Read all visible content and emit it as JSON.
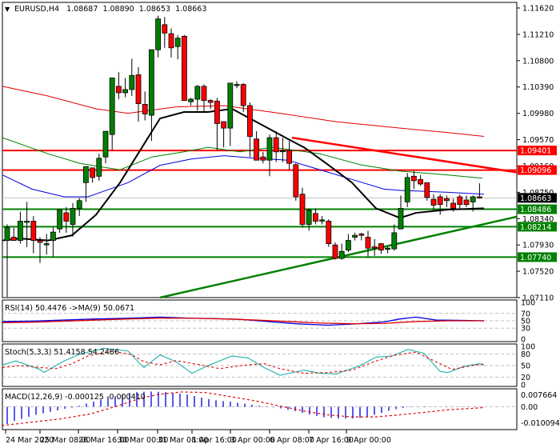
{
  "header": {
    "symbol_label": "EURUSD,H4",
    "open": "1.08687",
    "high": "1.08890",
    "low": "1.08653",
    "close": "1.08663"
  },
  "price_axis": {
    "ticks": [
      "1.11620",
      "1.11210",
      "1.10800",
      "1.10390",
      "1.09980",
      "1.09570",
      "1.09160",
      "1.08750",
      "1.08340",
      "1.07930",
      "1.07520",
      "1.07110"
    ]
  },
  "levels": {
    "resistance_1": {
      "value": "1.09401",
      "color": "#ff0000"
    },
    "resistance_2": {
      "value": "1.09096",
      "color": "#ff0000"
    },
    "current": {
      "value": "1.08663",
      "color": "#000000"
    },
    "support_1": {
      "value": "1.08486",
      "color": "#008000"
    },
    "support_2": {
      "value": "1.08214",
      "color": "#008000"
    },
    "support_3": {
      "value": "1.07740",
      "color": "#008000"
    }
  },
  "indicators": {
    "rsi": {
      "label": "RSI(14) 50.4476  ->MA(9) 50.0671",
      "levels": [
        "100",
        "70",
        "50",
        "30",
        "0"
      ]
    },
    "stoch": {
      "label": "Stoch(5,3,3) 51.4158 54.2486",
      "levels": [
        "100",
        "80",
        "50",
        "20",
        "0"
      ]
    },
    "macd": {
      "label": "MACD(12,26,9) -0.000125 -0.000410",
      "levels": [
        "0.007664",
        "0.00",
        "-0.010094"
      ]
    }
  },
  "time_axis": {
    "ticks": [
      "24 Mar 2020",
      "25 Mar 08:00",
      "26 Mar 16:00",
      "30 Mar 00:00",
      "31 Mar 08:00",
      "1 Apr 16:00",
      "3 Apr 00:00",
      "6 Apr 08:00",
      "7 Apr 16:00",
      "9 Apr 00:00"
    ]
  },
  "chart_data": {
    "type": "candlestick",
    "title": "EURUSD,H4",
    "ohlc_header": {
      "open": 1.08687,
      "high": 1.0889,
      "low": 1.08653,
      "close": 1.08663
    },
    "ylim": [
      1.0711,
      1.1162
    ],
    "y_ticks": [
      1.1162,
      1.1121,
      1.108,
      1.1039,
      1.0998,
      1.0957,
      1.0916,
      1.0875,
      1.0834,
      1.0793,
      1.0752,
      1.0711
    ],
    "x_ticks": [
      "24 Mar 2020",
      "25 Mar 08:00",
      "26 Mar 16:00",
      "30 Mar 00:00",
      "31 Mar 08:00",
      "1 Apr 16:00",
      "3 Apr 00:00",
      "6 Apr 08:00",
      "7 Apr 16:00",
      "9 Apr 00:00"
    ],
    "horizontal_levels": [
      {
        "value": 1.09401,
        "color": "red",
        "role": "resistance"
      },
      {
        "value": 1.09096,
        "color": "red",
        "role": "resistance"
      },
      {
        "value": 1.08486,
        "color": "green",
        "role": "support"
      },
      {
        "value": 1.08214,
        "color": "green",
        "role": "support"
      },
      {
        "value": 1.0774,
        "color": "green",
        "role": "support"
      }
    ],
    "trendlines": [
      {
        "color": "red",
        "from": {
          "x": "1 Apr 16:00",
          "y": 1.096
        },
        "to": {
          "x": "9 Apr 12:00",
          "y": 1.0908
        },
        "role": "descending resistance"
      },
      {
        "color": "green",
        "from": {
          "x": "26 Mar 16:00",
          "y": 1.0711
        },
        "to": {
          "x": "9 Apr 12:00",
          "y": 1.0838
        },
        "role": "ascending support"
      }
    ],
    "moving_averages": [
      "black (short)",
      "blue",
      "green",
      "red (long)"
    ],
    "candles_approx": [
      {
        "o": 1.08,
        "h": 1.0825,
        "l": 1.0712,
        "c": 1.082
      },
      {
        "o": 1.0805,
        "h": 1.082,
        "l": 1.08,
        "c": 1.08
      },
      {
        "o": 1.08,
        "h": 1.0845,
        "l": 1.0795,
        "c": 1.083
      },
      {
        "o": 1.083,
        "h": 1.086,
        "l": 1.079,
        "c": 1.083
      },
      {
        "o": 1.083,
        "h": 1.0838,
        "l": 1.078,
        "c": 1.08
      },
      {
        "o": 1.08,
        "h": 1.0805,
        "l": 1.0765,
        "c": 1.0797
      },
      {
        "o": 1.0795,
        "h": 1.081,
        "l": 1.0778,
        "c": 1.0795
      },
      {
        "o": 1.08,
        "h": 1.082,
        "l": 1.0775,
        "c": 1.0813
      },
      {
        "o": 1.0818,
        "h": 1.0845,
        "l": 1.0812,
        "c": 1.0848
      },
      {
        "o": 1.0843,
        "h": 1.0852,
        "l": 1.0812,
        "c": 1.083
      },
      {
        "o": 1.0825,
        "h": 1.0858,
        "l": 1.0806,
        "c": 1.085
      },
      {
        "o": 1.085,
        "h": 1.0866,
        "l": 1.0838,
        "c": 1.0862
      },
      {
        "o": 1.089,
        "h": 1.0905,
        "l": 1.086,
        "c": 1.0915
      },
      {
        "o": 1.0913,
        "h": 1.091,
        "l": 1.089,
        "c": 1.0898
      },
      {
        "o": 1.09,
        "h": 1.0935,
        "l": 1.0893,
        "c": 1.0928
      },
      {
        "o": 1.093,
        "h": 1.0955,
        "l": 1.092,
        "c": 1.097
      },
      {
        "o": 1.0965,
        "h": 1.1022,
        "l": 1.094,
        "c": 1.1053
      },
      {
        "o": 1.104,
        "h": 1.1062,
        "l": 1.102,
        "c": 1.103
      },
      {
        "o": 1.103,
        "h": 1.1053,
        "l": 1.1023,
        "c": 1.1035
      },
      {
        "o": 1.1035,
        "h": 1.1083,
        "l": 1.1025,
        "c": 1.1057
      },
      {
        "o": 1.1058,
        "h": 1.107,
        "l": 1.0985,
        "c": 1.1013
      },
      {
        "o": 1.1012,
        "h": 1.1032,
        "l": 1.0987,
        "c": 1.0997
      },
      {
        "o": 1.0995,
        "h": 1.1065,
        "l": 1.0955,
        "c": 1.1097
      },
      {
        "o": 1.1097,
        "h": 1.115,
        "l": 1.1085,
        "c": 1.1145
      },
      {
        "o": 1.1136,
        "h": 1.1148,
        "l": 1.11,
        "c": 1.1123
      },
      {
        "o": 1.1122,
        "h": 1.113,
        "l": 1.1085,
        "c": 1.11
      },
      {
        "o": 1.1102,
        "h": 1.112,
        "l": 1.1082,
        "c": 1.1115
      },
      {
        "o": 1.1118,
        "h": 1.112,
        "l": 1.103,
        "c": 1.1018
      },
      {
        "o": 1.1016,
        "h": 1.1022,
        "l": 1.101,
        "c": 1.102
      },
      {
        "o": 1.102,
        "h": 1.1042,
        "l": 1.1002,
        "c": 1.104
      },
      {
        "o": 1.104,
        "h": 1.1043,
        "l": 1.1,
        "c": 1.1018
      },
      {
        "o": 1.1018,
        "h": 1.102,
        "l": 1.1005,
        "c": 1.1015
      },
      {
        "o": 1.1017,
        "h": 1.1022,
        "l": 1.094,
        "c": 1.0982
      },
      {
        "o": 1.0985,
        "h": 1.0982,
        "l": 1.0945,
        "c": 1.0975
      },
      {
        "o": 1.0975,
        "h": 1.1035,
        "l": 1.0947,
        "c": 1.1045
      },
      {
        "o": 1.1043,
        "h": 1.1048,
        "l": 1.1037,
        "c": 1.1043
      },
      {
        "o": 1.1043,
        "h": 1.1045,
        "l": 1.1,
        "c": 1.101
      },
      {
        "o": 1.101,
        "h": 1.1015,
        "l": 1.093,
        "c": 1.0962
      },
      {
        "o": 1.0958,
        "h": 1.097,
        "l": 1.0925,
        "c": 1.0925
      },
      {
        "o": 1.093,
        "h": 1.0938,
        "l": 1.092,
        "c": 1.0925
      },
      {
        "o": 1.0925,
        "h": 1.0965,
        "l": 1.09,
        "c": 1.096
      },
      {
        "o": 1.096,
        "h": 1.097,
        "l": 1.0922,
        "c": 1.0938
      },
      {
        "o": 1.094,
        "h": 1.096,
        "l": 1.0922,
        "c": 1.094
      },
      {
        "o": 1.094,
        "h": 1.0955,
        "l": 1.091,
        "c": 1.092
      },
      {
        "o": 1.0918,
        "h": 1.092,
        "l": 1.0862,
        "c": 1.0868
      },
      {
        "o": 1.0872,
        "h": 1.0882,
        "l": 1.082,
        "c": 1.0825
      },
      {
        "o": 1.0825,
        "h": 1.085,
        "l": 1.0815,
        "c": 1.0847
      },
      {
        "o": 1.0842,
        "h": 1.085,
        "l": 1.0825,
        "c": 1.083
      },
      {
        "o": 1.0832,
        "h": 1.0838,
        "l": 1.0825,
        "c": 1.0832
      },
      {
        "o": 1.083,
        "h": 1.0833,
        "l": 1.079,
        "c": 1.0795
      },
      {
        "o": 1.0793,
        "h": 1.0797,
        "l": 1.077,
        "c": 1.0772
      },
      {
        "o": 1.0772,
        "h": 1.0795,
        "l": 1.077,
        "c": 1.0783
      },
      {
        "o": 1.0785,
        "h": 1.081,
        "l": 1.0782,
        "c": 1.08
      },
      {
        "o": 1.0805,
        "h": 1.0812,
        "l": 1.08,
        "c": 1.0808
      },
      {
        "o": 1.081,
        "h": 1.0812,
        "l": 1.08,
        "c": 1.0808
      },
      {
        "o": 1.0805,
        "h": 1.0815,
        "l": 1.0775,
        "c": 1.0788
      },
      {
        "o": 1.079,
        "h": 1.0802,
        "l": 1.0776,
        "c": 1.0788
      },
      {
        "o": 1.0795,
        "h": 1.0796,
        "l": 1.0779,
        "c": 1.0785
      },
      {
        "o": 1.0787,
        "h": 1.079,
        "l": 1.078,
        "c": 1.0788
      },
      {
        "o": 1.0787,
        "h": 1.0825,
        "l": 1.0784,
        "c": 1.0812
      },
      {
        "o": 1.0818,
        "h": 1.087,
        "l": 1.0818,
        "c": 1.085
      },
      {
        "o": 1.086,
        "h": 1.0905,
        "l": 1.0852,
        "c": 1.0898
      },
      {
        "o": 1.09,
        "h": 1.0908,
        "l": 1.088,
        "c": 1.0893
      },
      {
        "o": 1.0895,
        "h": 1.0902,
        "l": 1.0885,
        "c": 1.0888
      },
      {
        "o": 1.089,
        "h": 1.0887,
        "l": 1.0862,
        "c": 1.0867
      },
      {
        "o": 1.0864,
        "h": 1.0872,
        "l": 1.0845,
        "c": 1.0855
      },
      {
        "o": 1.0868,
        "h": 1.0872,
        "l": 1.084,
        "c": 1.0856
      },
      {
        "o": 1.0865,
        "h": 1.087,
        "l": 1.0852,
        "c": 1.0862
      },
      {
        "o": 1.0858,
        "h": 1.0865,
        "l": 1.0845,
        "c": 1.085
      },
      {
        "o": 1.0868,
        "h": 1.0872,
        "l": 1.0848,
        "c": 1.0856
      },
      {
        "o": 1.0863,
        "h": 1.087,
        "l": 1.0852,
        "c": 1.0856
      },
      {
        "o": 1.086,
        "h": 1.087,
        "l": 1.0845,
        "c": 1.0868
      },
      {
        "o": 1.0868,
        "h": 1.0889,
        "l": 1.0865,
        "c": 1.0866
      }
    ],
    "subplots": [
      {
        "name": "RSI(14)",
        "value": 50.4476,
        "ma9": 50.0671,
        "ylim": [
          0,
          100
        ],
        "levels": [
          70,
          50,
          30
        ]
      },
      {
        "name": "Stoch(5,3,3)",
        "k": 51.4158,
        "d": 54.2486,
        "ylim": [
          0,
          100
        ],
        "levels": [
          80,
          50,
          20
        ]
      },
      {
        "name": "MACD(12,26,9)",
        "macd": -0.000125,
        "signal": -0.00041,
        "ylim": [
          -0.010094,
          0.007664
        ]
      }
    ]
  }
}
